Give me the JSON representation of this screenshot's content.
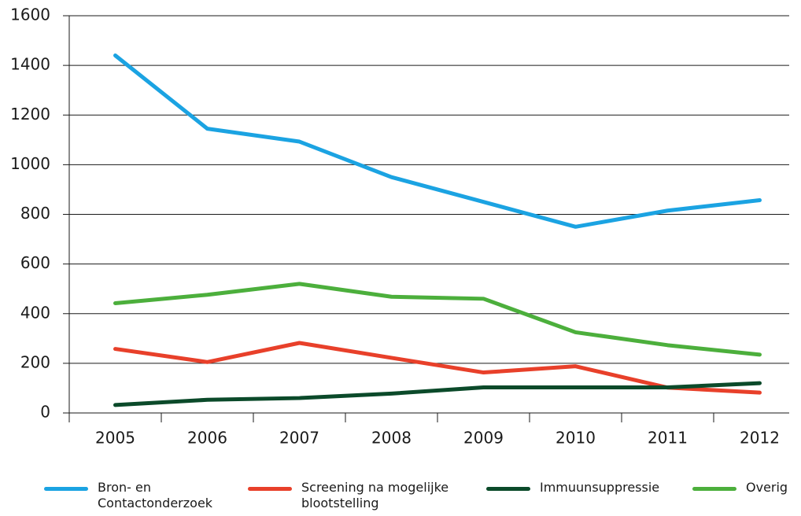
{
  "chart_data": {
    "type": "line",
    "categories": [
      "2005",
      "2006",
      "2007",
      "2008",
      "2009",
      "2010",
      "2011",
      "2012"
    ],
    "series": [
      {
        "name": "Bron- en Contactonderzoek",
        "color": "#1ba3e2",
        "values": [
          1440,
          1145,
          1093,
          950,
          850,
          750,
          815,
          857
        ]
      },
      {
        "name": "Screening na mogelijke blootstelling",
        "color": "#e8402a",
        "values": [
          258,
          205,
          282,
          222,
          163,
          188,
          102,
          82
        ]
      },
      {
        "name": "Immuunsuppressie",
        "color": "#0b4a2a",
        "values": [
          32,
          53,
          60,
          78,
          103,
          103,
          103,
          120
        ]
      },
      {
        "name": "Overig",
        "color": "#4caf3c",
        "values": [
          442,
          476,
          520,
          468,
          460,
          325,
          273,
          235
        ]
      }
    ],
    "ylim": [
      0,
      1600
    ],
    "yticks": [
      0,
      200,
      400,
      600,
      800,
      1000,
      1200,
      1400,
      1600
    ],
    "grid": true
  }
}
